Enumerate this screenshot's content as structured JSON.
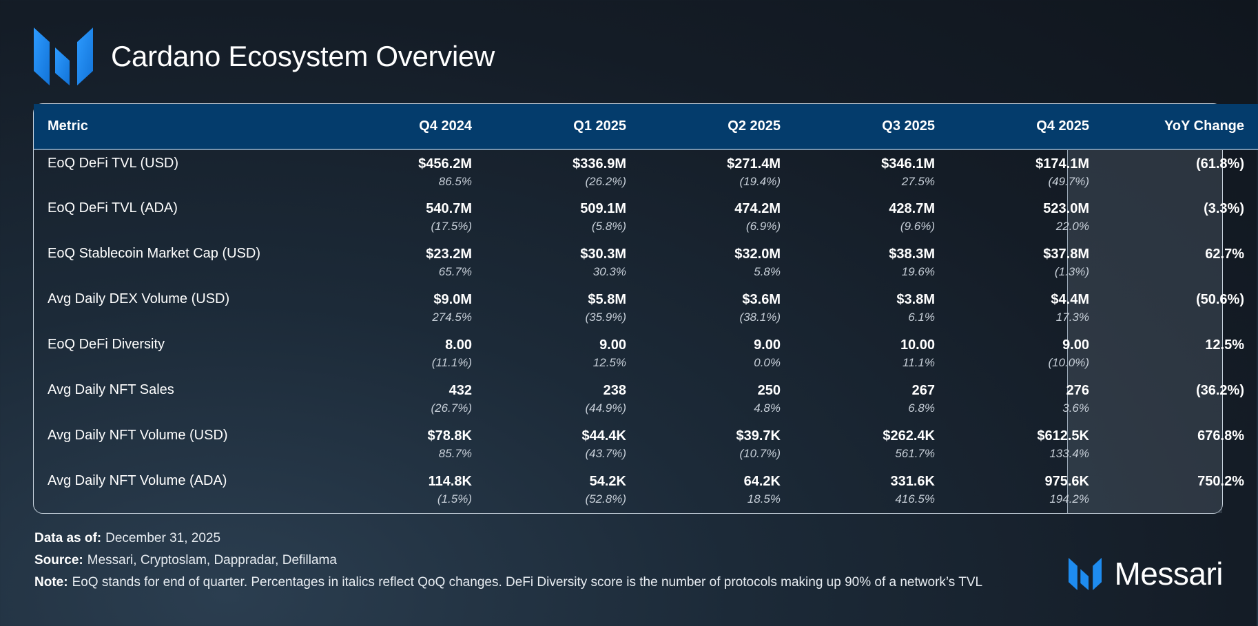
{
  "header": {
    "title": "Cardano Ecosystem Overview",
    "logo_icon": "messari-logo-icon"
  },
  "table": {
    "columns": [
      "Metric",
      "Q4 2024",
      "Q1 2025",
      "Q2 2025",
      "Q3 2025",
      "Q4 2025",
      "YoY Change"
    ],
    "rows": [
      {
        "metric": "EoQ DeFi TVL (USD)",
        "values": [
          "$456.2M",
          "$336.9M",
          "$271.4M",
          "$346.1M",
          "$174.1M"
        ],
        "changes": [
          "86.5%",
          "(26.2%)",
          "(19.4%)",
          "27.5%",
          "(49.7%)"
        ],
        "yoy": "(61.8%)"
      },
      {
        "metric": "EoQ DeFi TVL (ADA)",
        "values": [
          "540.7M",
          "509.1M",
          "474.2M",
          "428.7M",
          "523.0M"
        ],
        "changes": [
          "(17.5%)",
          "(5.8%)",
          "(6.9%)",
          "(9.6%)",
          "22.0%"
        ],
        "yoy": "(3.3%)"
      },
      {
        "metric": "EoQ Stablecoin Market Cap (USD)",
        "values": [
          "$23.2M",
          "$30.3M",
          "$32.0M",
          "$38.3M",
          "$37.8M"
        ],
        "changes": [
          "65.7%",
          "30.3%",
          "5.8%",
          "19.6%",
          "(1.3%)"
        ],
        "yoy": "62.7%"
      },
      {
        "metric": "Avg Daily DEX Volume (USD)",
        "values": [
          "$9.0M",
          "$5.8M",
          "$3.6M",
          "$3.8M",
          "$4.4M"
        ],
        "changes": [
          "274.5%",
          "(35.9%)",
          "(38.1%)",
          "6.1%",
          "17.3%"
        ],
        "yoy": "(50.6%)"
      },
      {
        "metric": "EoQ DeFi Diversity",
        "values": [
          "8.00",
          "9.00",
          "9.00",
          "10.00",
          "9.00"
        ],
        "changes": [
          "(11.1%)",
          "12.5%",
          "0.0%",
          "11.1%",
          "(10.0%)"
        ],
        "yoy": "12.5%"
      },
      {
        "metric": "Avg Daily NFT Sales",
        "values": [
          "432",
          "238",
          "250",
          "267",
          "276"
        ],
        "changes": [
          "(26.7%)",
          "(44.9%)",
          "4.8%",
          "6.8%",
          "3.6%"
        ],
        "yoy": "(36.2%)"
      },
      {
        "metric": "Avg Daily NFT Volume (USD)",
        "values": [
          "$78.8K",
          "$44.4K",
          "$39.7K",
          "$262.4K",
          "$612.5K"
        ],
        "changes": [
          "85.7%",
          "(43.7%)",
          "(10.7%)",
          "561.7%",
          "133.4%"
        ],
        "yoy": "676.8%"
      },
      {
        "metric": "Avg Daily NFT Volume (ADA)",
        "values": [
          "114.8K",
          "54.2K",
          "64.2K",
          "331.6K",
          "975.6K"
        ],
        "changes": [
          "(1.5%)",
          "(52.8%)",
          "18.5%",
          "416.5%",
          "194.2%"
        ],
        "yoy": "750.2%"
      }
    ]
  },
  "footer": {
    "data_as_of_label": "Data as of:",
    "data_as_of": "December 31, 2025",
    "source_label": "Source:",
    "source": "Messari, Cryptoslam, Dappradar, Defillama",
    "note_label": "Note:",
    "note": "EoQ stands for end of quarter. Percentages in italics reflect QoQ changes. DeFi Diversity score is the number of protocols making up 90% of a network’s TVL"
  },
  "brand": {
    "name": "Messari"
  },
  "colors": {
    "header_bg": "#043c6c",
    "logo_blue": "#1e8cf0",
    "border": "#c8d3de"
  }
}
